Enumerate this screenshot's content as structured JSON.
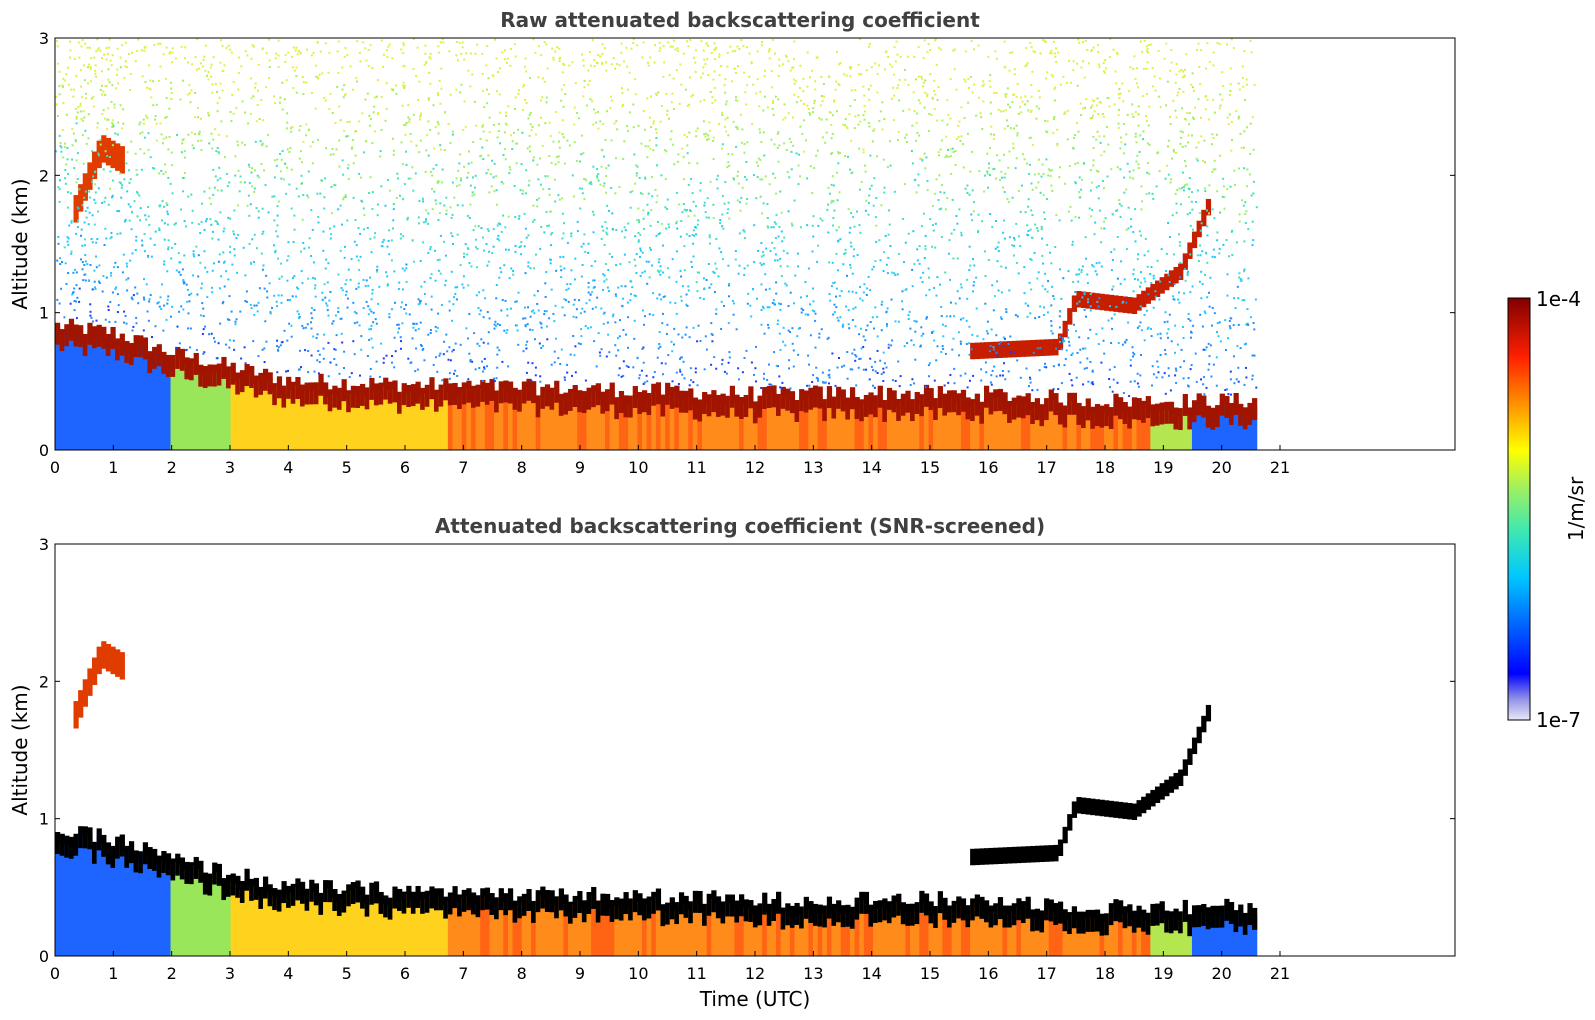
{
  "figure": {
    "shared_xlabel": "Time (UTC)",
    "colorbar": {
      "label": "1/m/sr",
      "min_label": "1e-7",
      "max_label": "1e-4",
      "scale": "log",
      "colormap": "jet (white at lowest values)"
    }
  },
  "chart_data": [
    {
      "type": "heatmap",
      "title": "Raw attenuated backscattering coefficient",
      "xlabel": "",
      "ylabel": "Altitude (km)",
      "xlim": [
        0,
        24
      ],
      "ylim": [
        0,
        3
      ],
      "xticks": [
        0,
        1,
        2,
        3,
        4,
        5,
        6,
        7,
        8,
        9,
        10,
        11,
        12,
        13,
        14,
        15,
        16,
        17,
        18,
        19,
        20,
        21
      ],
      "yticks": [
        0,
        1,
        2,
        3
      ],
      "data_extent_hours": 20.6,
      "features": {
        "boundary_layer_top_km": [
          {
            "t": 0,
            "z": 0.85
          },
          {
            "t": 1,
            "z": 0.8
          },
          {
            "t": 2,
            "z": 0.65
          },
          {
            "t": 3,
            "z": 0.55
          },
          {
            "t": 4,
            "z": 0.45
          },
          {
            "t": 6,
            "z": 0.42
          },
          {
            "t": 8,
            "z": 0.4
          },
          {
            "t": 10,
            "z": 0.38
          },
          {
            "t": 12,
            "z": 0.35
          },
          {
            "t": 14,
            "z": 0.36
          },
          {
            "t": 16,
            "z": 0.35
          },
          {
            "t": 18,
            "z": 0.3
          }
        ],
        "residual_layer_km": [
          {
            "t": 15.7,
            "z": 0.72
          },
          {
            "t": 17.2,
            "z": 0.75
          },
          {
            "t": 17.5,
            "z": 1.1
          },
          {
            "t": 18.5,
            "z": 1.05
          },
          {
            "t": 19.3,
            "z": 1.3
          },
          {
            "t": 19.8,
            "z": 1.8
          }
        ],
        "elevated_aerosol_km": [
          {
            "t": 0.3,
            "z": 1.7
          },
          {
            "t": 0.8,
            "z": 2.2
          },
          {
            "t": 1.2,
            "z": 2.1
          }
        ]
      },
      "noise_above_boundary_layer": true
    },
    {
      "type": "heatmap",
      "title": "Attenuated backscattering coefficient (SNR-screened)",
      "xlabel": "Time (UTC)",
      "ylabel": "Altitude (km)",
      "xlim": [
        0,
        24
      ],
      "ylim": [
        0,
        3
      ],
      "xticks": [
        0,
        1,
        2,
        3,
        4,
        5,
        6,
        7,
        8,
        9,
        10,
        11,
        12,
        13,
        14,
        15,
        16,
        17,
        18,
        19,
        20,
        21
      ],
      "yticks": [
        0,
        1,
        2,
        3
      ],
      "data_extent_hours": 20.6,
      "noise_above_boundary_layer": false,
      "saturated_values_shown_black": true
    }
  ],
  "colors": {
    "background": "#ffffff",
    "axis": "#000000",
    "title": "#404040",
    "saturated": "#000000"
  }
}
